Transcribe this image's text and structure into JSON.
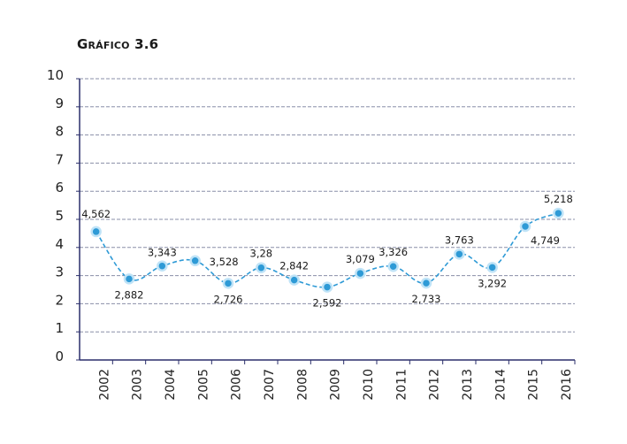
{
  "chart_data": {
    "type": "line",
    "title": "Gráfico 3.6",
    "xlabel": "",
    "ylabel": "",
    "ylim": [
      0,
      10
    ],
    "yticks": [
      "0",
      "1",
      "2",
      "3",
      "4",
      "5",
      "6",
      "7",
      "8",
      "9",
      "10"
    ],
    "grid": true,
    "line_style": "dashed",
    "marker": "circle",
    "categories": [
      "2002",
      "2003",
      "2004",
      "2005",
      "2006",
      "2007",
      "2008",
      "2009",
      "2010",
      "2011",
      "2012",
      "2013",
      "2014",
      "2015",
      "2016"
    ],
    "values": [
      4.562,
      2.882,
      3.343,
      3.528,
      2.726,
      3.28,
      2.842,
      2.592,
      3.079,
      3.326,
      2.733,
      3.763,
      3.292,
      4.749,
      5.218
    ],
    "data_labels": [
      "4,562",
      "2,882",
      "3,343",
      "3,528",
      "2,726",
      "3,28",
      "2,842",
      "2,592",
      "3,079",
      "3,326",
      "2,733",
      "3,763",
      "3,292",
      "4,749",
      "5,218"
    ],
    "colors": {
      "line": "#2e9ad6",
      "marker_fill": "#2e9ad6",
      "marker_edge": "#bfe3f7",
      "grid": "#8a8fa8",
      "axis": "#2b2f6b"
    }
  }
}
